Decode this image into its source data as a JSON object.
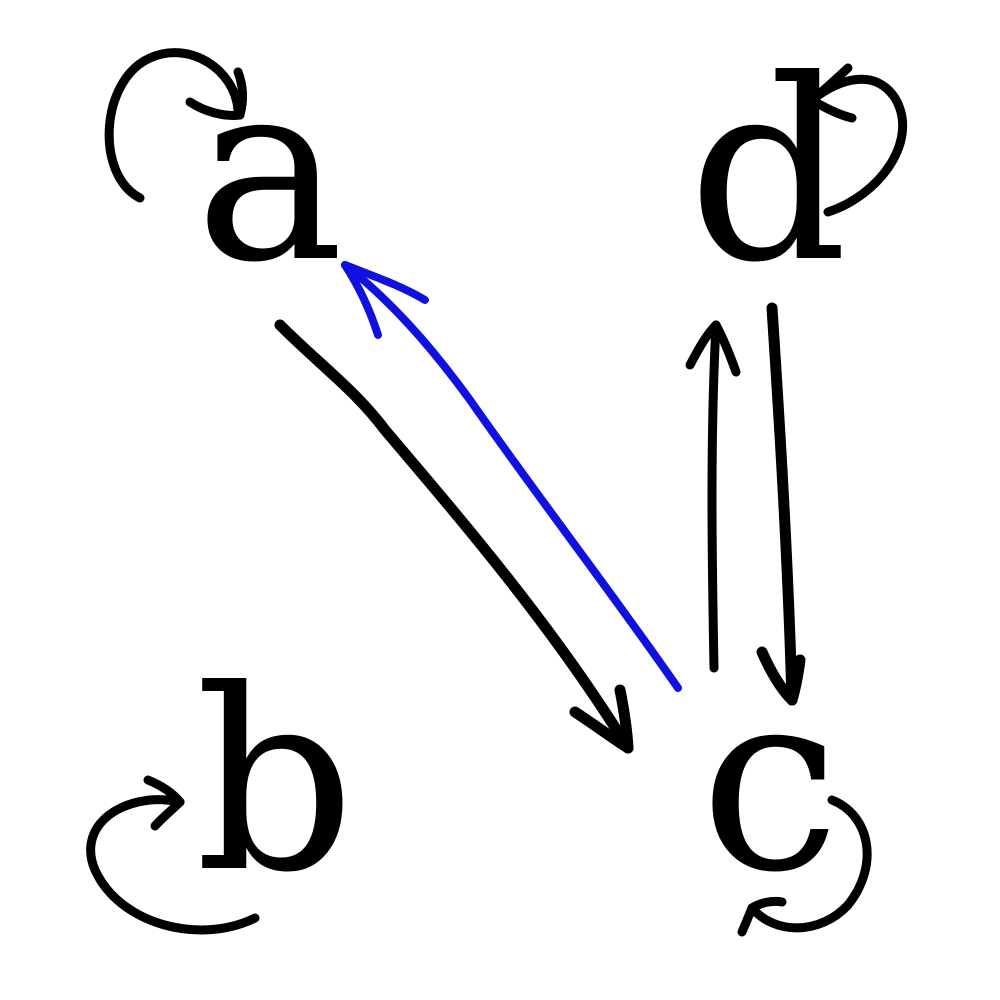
{
  "nodes": [
    {
      "id": "a",
      "label": "a"
    },
    {
      "id": "b",
      "label": "b"
    },
    {
      "id": "c",
      "label": "c"
    },
    {
      "id": "d",
      "label": "d"
    }
  ],
  "edges": [
    {
      "from": "a",
      "to": "a",
      "color": "#000000"
    },
    {
      "from": "b",
      "to": "b",
      "color": "#000000"
    },
    {
      "from": "c",
      "to": "c",
      "color": "#000000"
    },
    {
      "from": "d",
      "to": "d",
      "color": "#000000"
    },
    {
      "from": "a",
      "to": "c",
      "color": "#000000"
    },
    {
      "from": "c",
      "to": "a",
      "color": "#1010e0"
    },
    {
      "from": "c",
      "to": "d",
      "color": "#000000"
    },
    {
      "from": "d",
      "to": "c",
      "color": "#000000"
    }
  ],
  "colors": {
    "ink": "#000000",
    "highlight": "#1010e0",
    "background": "#ffffff"
  }
}
